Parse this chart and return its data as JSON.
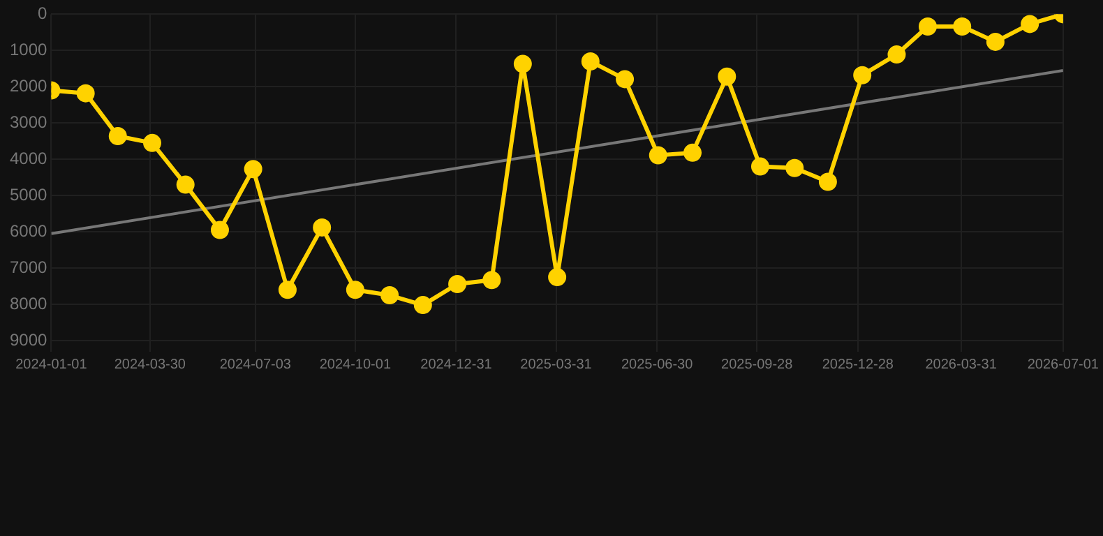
{
  "chart_data": {
    "type": "line",
    "x": [
      "2024-01-01",
      "2024-02-01",
      "2024-03-01",
      "2024-04-01",
      "2024-05-01",
      "2024-06-01",
      "2024-07-01",
      "2024-08-01",
      "2024-09-01",
      "2024-10-01",
      "2024-11-01",
      "2024-12-01",
      "2025-01-01",
      "2025-02-01",
      "2025-03-01",
      "2025-04-01",
      "2025-05-01",
      "2025-06-01",
      "2025-07-01",
      "2025-08-01",
      "2025-09-01",
      "2025-10-01",
      "2025-11-01",
      "2025-12-01",
      "2026-01-01",
      "2026-02-01",
      "2026-03-01",
      "2026-04-01",
      "2026-05-01",
      "2026-06-01",
      "2026-07-01"
    ],
    "series": [
      {
        "color": "#ffd200",
        "marker": "circle",
        "values": [
          2100,
          2180,
          3360,
          3550,
          4700,
          5950,
          4270,
          7600,
          5880,
          7600,
          7750,
          8020,
          7440,
          7330,
          1370,
          7250,
          1300,
          1790,
          3890,
          3820,
          1720,
          4200,
          4240,
          4620,
          1680,
          1110,
          340,
          340,
          760,
          270,
          0
        ]
      },
      {
        "type": "line",
        "color": "#777777",
        "marker": "none",
        "x": [
          "2024-01-01",
          "2026-07-01"
        ],
        "values": [
          6050,
          1550
        ]
      }
    ],
    "xlim": [
      "2024-01-01",
      "2026-07-01"
    ],
    "xticks": [
      "2024-01-01",
      "2024-03-30",
      "2024-07-03",
      "2024-10-01",
      "2024-12-31",
      "2025-03-31",
      "2025-06-30",
      "2025-09-28",
      "2025-12-28",
      "2026-03-31",
      "2026-07-01"
    ],
    "ylim": [
      9000,
      0
    ],
    "yticks": [
      0,
      1000,
      2000,
      3000,
      4000,
      5000,
      6000,
      7000,
      8000,
      9000
    ],
    "grid": true,
    "legend": false
  }
}
